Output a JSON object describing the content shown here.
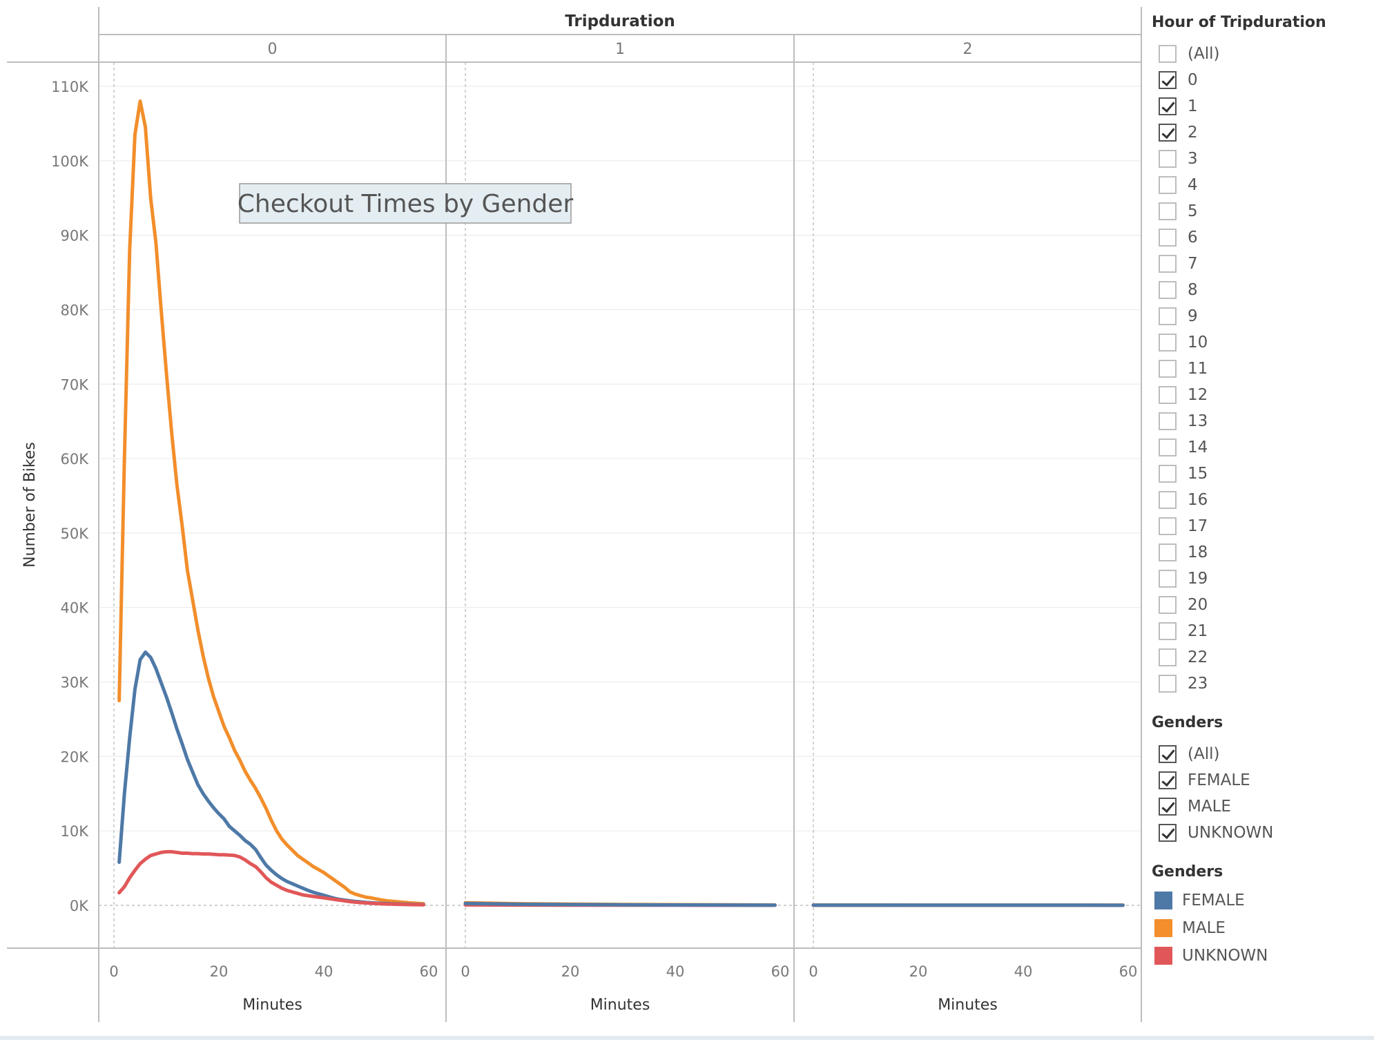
{
  "colors": {
    "female": "#4e79a7",
    "male": "#f28e2b",
    "unknown": "#e15759",
    "annotation_bg": "#e4edf1",
    "annotation_border": "#999999",
    "grid": "#ececec",
    "axis": "#bdbdbd"
  },
  "chart_data": {
    "type": "line",
    "title": "Checkout Times by Gender",
    "column_header": "Tripduration",
    "ylabel": "Number of Bikes",
    "xlabel": "Minutes",
    "ylim": [
      -3000,
      112000
    ],
    "xlim": [
      -3,
      61
    ],
    "yticks": [
      0,
      10000,
      20000,
      30000,
      40000,
      50000,
      60000,
      70000,
      80000,
      90000,
      100000,
      110000
    ],
    "ytick_labels": [
      "0K",
      "10K",
      "20K",
      "30K",
      "40K",
      "50K",
      "60K",
      "70K",
      "80K",
      "90K",
      "100K",
      "110K"
    ],
    "xticks": [
      0,
      20,
      40,
      60
    ],
    "xtick_labels": [
      "0",
      "20",
      "40",
      "60"
    ],
    "grid": true,
    "legend_position": "right",
    "panels": [
      {
        "label": "0",
        "series": [
          {
            "name": "MALE",
            "color_key": "male",
            "x": [
              1,
              2,
              3,
              4,
              5,
              6,
              7,
              8,
              9,
              10,
              11,
              12,
              13,
              14,
              15,
              16,
              17,
              18,
              19,
              20,
              21,
              22,
              23,
              24,
              25,
              26,
              27,
              28,
              29,
              30,
              31,
              32,
              33,
              34,
              35,
              36,
              37,
              38,
              39,
              40,
              41,
              42,
              43,
              44,
              45,
              46,
              47,
              48,
              49,
              50,
              51,
              52,
              53,
              54,
              55,
              56,
              57,
              58,
              59
            ],
            "y": [
              27500,
              60000,
              88000,
              103500,
              108000,
              104500,
              95000,
              89000,
              80000,
              71500,
              63500,
              56500,
              51000,
              45000,
              41000,
              37000,
              33500,
              30500,
              28000,
              26000,
              24000,
              22500,
              20800,
              19500,
              18000,
              16800,
              15700,
              14400,
              13000,
              11400,
              10000,
              8900,
              8100,
              7400,
              6700,
              6200,
              5700,
              5200,
              4800,
              4400,
              3900,
              3400,
              2900,
              2400,
              1800,
              1500,
              1300,
              1100,
              1000,
              850,
              720,
              620,
              550,
              480,
              420,
              360,
              300,
              250,
              200
            ]
          },
          {
            "name": "FEMALE",
            "color_key": "female",
            "x": [
              1,
              2,
              3,
              4,
              5,
              6,
              7,
              8,
              9,
              10,
              11,
              12,
              13,
              14,
              15,
              16,
              17,
              18,
              19,
              20,
              21,
              22,
              23,
              24,
              25,
              26,
              27,
              28,
              29,
              30,
              31,
              32,
              33,
              34,
              35,
              36,
              37,
              38,
              39,
              40,
              41,
              42,
              43,
              44,
              45,
              46,
              47,
              48,
              49,
              50,
              51,
              52,
              53,
              54,
              55,
              56,
              57,
              58,
              59
            ],
            "y": [
              5800,
              15000,
              22500,
              29000,
              33000,
              34000,
              33300,
              31800,
              29900,
              28000,
              25900,
              23700,
              21700,
              19600,
              17900,
              16200,
              15000,
              14000,
              13100,
              12300,
              11600,
              10600,
              10000,
              9400,
              8700,
              8200,
              7500,
              6400,
              5400,
              4700,
              4100,
              3600,
              3200,
              2900,
              2600,
              2300,
              2000,
              1750,
              1550,
              1350,
              1150,
              950,
              800,
              700,
              600,
              520,
              460,
              400,
              350,
              310,
              270,
              240,
              210,
              190,
              170,
              150,
              130,
              110,
              100
            ]
          },
          {
            "name": "UNKNOWN",
            "color_key": "unknown",
            "x": [
              1,
              2,
              3,
              4,
              5,
              6,
              7,
              8,
              9,
              10,
              11,
              12,
              13,
              14,
              15,
              16,
              17,
              18,
              19,
              20,
              21,
              22,
              23,
              24,
              25,
              26,
              27,
              28,
              29,
              30,
              31,
              32,
              33,
              34,
              35,
              36,
              37,
              38,
              39,
              40,
              41,
              42,
              43,
              44,
              45,
              46,
              47,
              48,
              49,
              50,
              51,
              52,
              53,
              54,
              55,
              56,
              57,
              58,
              59
            ],
            "y": [
              1700,
              2500,
              3700,
              4700,
              5600,
              6200,
              6700,
              6900,
              7100,
              7200,
              7200,
              7100,
              7000,
              7000,
              6950,
              6950,
              6900,
              6900,
              6850,
              6800,
              6800,
              6750,
              6700,
              6500,
              6100,
              5600,
              5200,
              4500,
              3700,
              3100,
              2700,
              2300,
              2000,
              1800,
              1600,
              1400,
              1300,
              1200,
              1100,
              1000,
              900,
              800,
              700,
              600,
              500,
              430,
              370,
              320,
              280,
              240,
              210,
              180,
              160,
              140,
              120,
              100,
              90,
              80,
              70
            ]
          }
        ]
      },
      {
        "label": "1",
        "series": [
          {
            "name": "MALE",
            "color_key": "male",
            "x": [
              0,
              10,
              20,
              30,
              40,
              50,
              59
            ],
            "y": [
              350,
              220,
              160,
              120,
              90,
              70,
              50
            ]
          },
          {
            "name": "UNKNOWN",
            "color_key": "unknown",
            "x": [
              0,
              10,
              20,
              30,
              40,
              50,
              59
            ],
            "y": [
              60,
              40,
              30,
              20,
              15,
              10,
              8
            ]
          },
          {
            "name": "FEMALE",
            "color_key": "female",
            "x": [
              0,
              10,
              20,
              30,
              40,
              50,
              59
            ],
            "y": [
              250,
              150,
              100,
              70,
              50,
              40,
              30
            ]
          }
        ]
      },
      {
        "label": "2",
        "series": [
          {
            "name": "MALE",
            "color_key": "male",
            "x": [
              0,
              10,
              20,
              30,
              40,
              50,
              59
            ],
            "y": [
              40,
              35,
              30,
              28,
              25,
              22,
              20
            ]
          },
          {
            "name": "UNKNOWN",
            "color_key": "unknown",
            "x": [
              0,
              10,
              20,
              30,
              40,
              50,
              59
            ],
            "y": [
              10,
              8,
              8,
              6,
              6,
              5,
              5
            ]
          },
          {
            "name": "FEMALE",
            "color_key": "female",
            "x": [
              0,
              10,
              20,
              30,
              40,
              50,
              59
            ],
            "y": [
              30,
              25,
              22,
              20,
              18,
              15,
              12
            ]
          }
        ]
      }
    ]
  },
  "filters": {
    "hour": {
      "title": "Hour of Tripduration",
      "options": [
        {
          "label": "(All)",
          "checked": false
        },
        {
          "label": "0",
          "checked": true
        },
        {
          "label": "1",
          "checked": true
        },
        {
          "label": "2",
          "checked": true
        },
        {
          "label": "3",
          "checked": false
        },
        {
          "label": "4",
          "checked": false
        },
        {
          "label": "5",
          "checked": false
        },
        {
          "label": "6",
          "checked": false
        },
        {
          "label": "7",
          "checked": false
        },
        {
          "label": "8",
          "checked": false
        },
        {
          "label": "9",
          "checked": false
        },
        {
          "label": "10",
          "checked": false
        },
        {
          "label": "11",
          "checked": false
        },
        {
          "label": "12",
          "checked": false
        },
        {
          "label": "13",
          "checked": false
        },
        {
          "label": "14",
          "checked": false
        },
        {
          "label": "15",
          "checked": false
        },
        {
          "label": "16",
          "checked": false
        },
        {
          "label": "17",
          "checked": false
        },
        {
          "label": "18",
          "checked": false
        },
        {
          "label": "19",
          "checked": false
        },
        {
          "label": "20",
          "checked": false
        },
        {
          "label": "21",
          "checked": false
        },
        {
          "label": "22",
          "checked": false
        },
        {
          "label": "23",
          "checked": false
        }
      ]
    },
    "genders": {
      "title": "Genders",
      "options": [
        {
          "label": "(All)",
          "checked": true
        },
        {
          "label": "FEMALE",
          "checked": true
        },
        {
          "label": "MALE",
          "checked": true
        },
        {
          "label": "UNKNOWN",
          "checked": true
        }
      ]
    }
  },
  "legend": {
    "title": "Genders",
    "items": [
      {
        "label": "FEMALE",
        "color_key": "female"
      },
      {
        "label": "MALE",
        "color_key": "male"
      },
      {
        "label": "UNKNOWN",
        "color_key": "unknown"
      }
    ]
  }
}
